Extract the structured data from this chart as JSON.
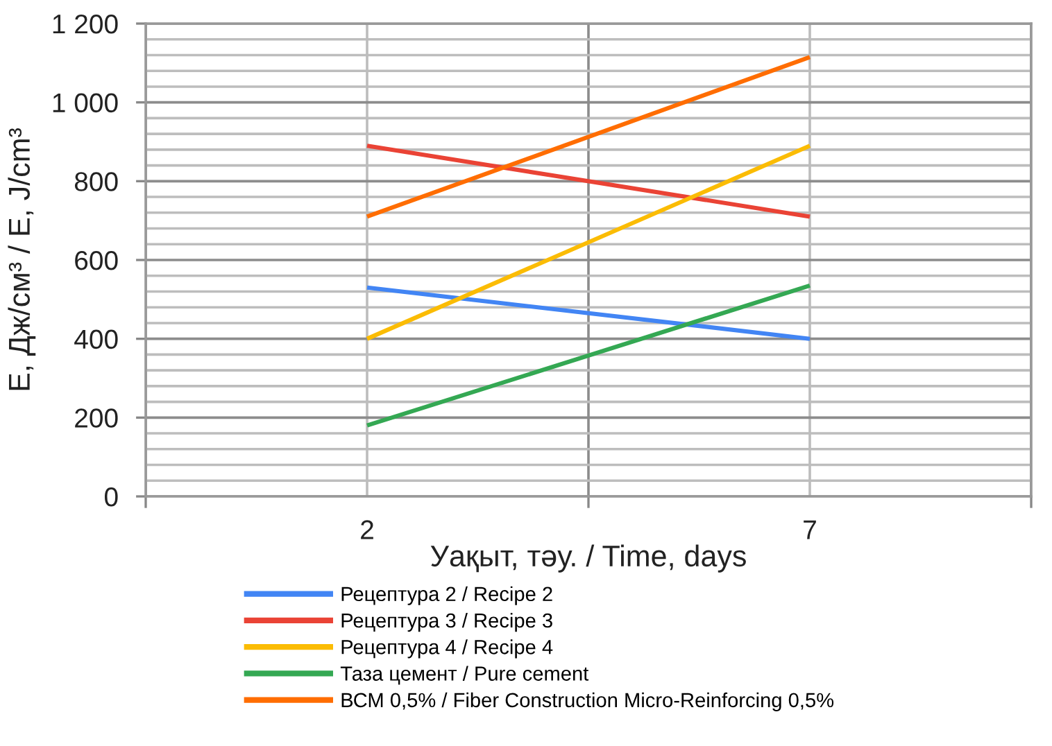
{
  "chart_data": {
    "type": "line",
    "xlabel": "Уақыт, тәу. / Time, days",
    "ylabel": "E, Дж/см³ / E, J/cm³",
    "categories": [
      "2",
      "7"
    ],
    "ylim": [
      0,
      1200
    ],
    "yticks": [
      0,
      200,
      400,
      600,
      800,
      {
        "value": 1000,
        "label": "1 000"
      },
      {
        "value": 1200,
        "label": "1 200"
      }
    ],
    "grid": true,
    "legend": "bottom",
    "marker": "none",
    "line_style": "solid",
    "series": [
      {
        "name": "Рецептура 2 / Recipe 2",
        "color": "#4285f4",
        "values": [
          530,
          400
        ]
      },
      {
        "name": "Рецептура 3 / Recipe 3",
        "color": "#ea4335",
        "values": [
          890,
          710
        ]
      },
      {
        "name": "Рецептура 4 / Recipe 4",
        "color": "#fbbc04",
        "values": [
          400,
          890
        ]
      },
      {
        "name": "Таза цемент / Pure cement",
        "color": "#34a853",
        "values": [
          180,
          535
        ]
      },
      {
        "name": "ВСМ 0,5% / Fiber Construction Micro-Reinforcing 0,5%",
        "color": "#ff6d01",
        "values": [
          710,
          1115
        ]
      }
    ]
  }
}
